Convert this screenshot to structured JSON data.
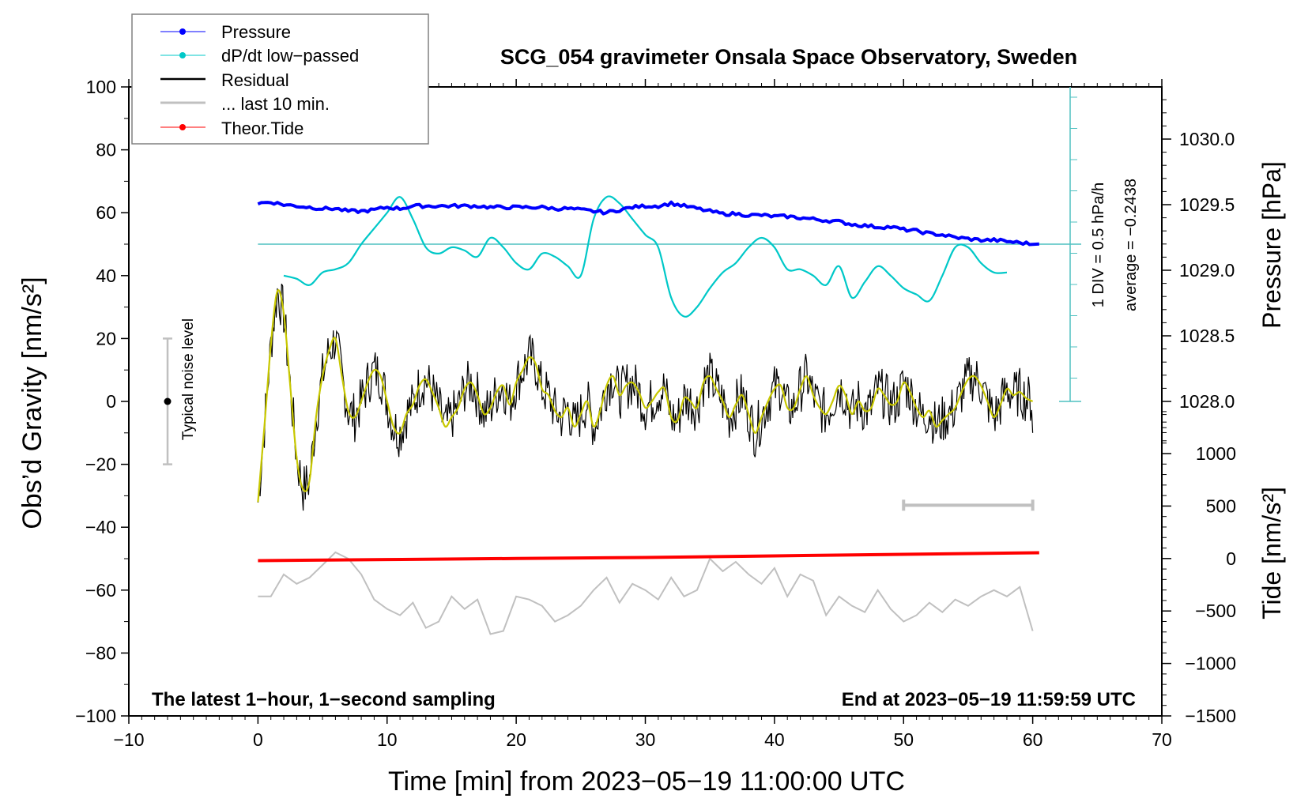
{
  "chart_data": {
    "type": "line",
    "title": "SCG_054 gravimeter Onsala Space Observatory, Sweden",
    "xlabel": "Time [min] from 2023−05−19 11:00:00 UTC",
    "ylabel_left": "Obs’d Gravity [nm/s²]",
    "ylabel_right_top": "Pressure [hPa]",
    "ylabel_right_bottom": "Tide [nm/s²]",
    "xlim": [
      -10,
      70
    ],
    "ylim": [
      -100,
      100
    ],
    "pressure_lim": [
      1027.5,
      1030.5
    ],
    "tide_lim": [
      -1500,
      1500
    ],
    "x_ticks": [
      "−10",
      "0",
      "10",
      "20",
      "30",
      "40",
      "50",
      "60",
      "70"
    ],
    "x_tick_values": [
      -10,
      0,
      10,
      20,
      30,
      40,
      50,
      60,
      70
    ],
    "y_ticks": [
      "100",
      "80",
      "60",
      "40",
      "20",
      "0",
      "−20",
      "−40",
      "−60",
      "−80",
      "−100"
    ],
    "y_tick_values": [
      100,
      80,
      60,
      40,
      20,
      0,
      -20,
      -40,
      -60,
      -80,
      -100
    ],
    "pressure_ticks": [
      "1030.0",
      "1029.5",
      "1029.0",
      "1028.5",
      "1028.0"
    ],
    "pressure_tick_values": [
      1030.0,
      1029.5,
      1029.0,
      1028.5,
      1028.0
    ],
    "tide_ticks": [
      "1000",
      "500",
      "0",
      "−500",
      "−1000",
      "−1500"
    ],
    "tide_tick_values": [
      1000,
      500,
      0,
      -500,
      -1000,
      -1500
    ],
    "legend": {
      "position": "top-left",
      "entries": [
        {
          "label": "Pressure",
          "color": "#0000ff",
          "marker": "dot"
        },
        {
          "label": "dP/dt low−passed",
          "color": "#00c8c8",
          "marker": "dot"
        },
        {
          "label": "Residual",
          "color": "#000000",
          "marker": "none"
        },
        {
          "label": "... last 10 min.",
          "color": "#c0c0c0",
          "marker": "none"
        },
        {
          "label": "Theor.Tide",
          "color": "#ff0000",
          "marker": "dot"
        }
      ]
    },
    "annotations": {
      "bottom_left": "The latest 1−hour, 1−second sampling",
      "bottom_right": "End at 2023−05−19 11:59:59 UTC",
      "dpdt_scale": "1 DIV = 0.5 hPa/h",
      "dpdt_average": "average = −0.2438",
      "noise_label": "Typical noise level",
      "noise_bar": {
        "x": -7,
        "center": 0,
        "low": -20,
        "high": 20
      },
      "ten_min_bar": {
        "y": -33,
        "x_start": 50,
        "x_end": 60
      }
    },
    "series": [
      {
        "name": "Pressure",
        "axis": "pressure",
        "color": "#0000ff",
        "x": [
          0,
          1,
          2,
          3,
          4,
          5,
          6,
          7,
          8,
          9,
          10,
          11,
          12,
          13,
          14,
          15,
          16,
          17,
          18,
          19,
          20,
          21,
          22,
          23,
          24,
          25,
          26,
          27,
          28,
          29,
          30,
          31,
          32,
          33,
          34,
          35,
          36,
          37,
          38,
          39,
          40,
          41,
          42,
          43,
          44,
          45,
          46,
          47,
          48,
          49,
          50,
          51,
          52,
          53,
          54,
          55,
          56,
          57,
          58,
          59,
          60
        ],
        "values": [
          1029.51,
          1029.52,
          1029.5,
          1029.49,
          1029.48,
          1029.47,
          1029.47,
          1029.45,
          1029.45,
          1029.46,
          1029.48,
          1029.47,
          1029.49,
          1029.49,
          1029.49,
          1029.49,
          1029.49,
          1029.49,
          1029.48,
          1029.48,
          1029.48,
          1029.48,
          1029.48,
          1029.47,
          1029.47,
          1029.46,
          1029.45,
          1029.44,
          1029.46,
          1029.48,
          1029.49,
          1029.49,
          1029.51,
          1029.49,
          1029.47,
          1029.45,
          1029.43,
          1029.43,
          1029.42,
          1029.42,
          1029.41,
          1029.41,
          1029.4,
          1029.39,
          1029.38,
          1029.37,
          1029.35,
          1029.34,
          1029.33,
          1029.33,
          1029.31,
          1029.3,
          1029.28,
          1029.27,
          1029.25,
          1029.24,
          1029.23,
          1029.23,
          1029.22,
          1029.21,
          1029.2
        ]
      },
      {
        "name": "dP/dt low-passed",
        "axis": "pressure_div",
        "color": "#00c8c8",
        "baseline": 50,
        "x": [
          2,
          3,
          4,
          5,
          6,
          7,
          8,
          9,
          10,
          11,
          12,
          13,
          14,
          15,
          16,
          17,
          18,
          19,
          20,
          21,
          22,
          23,
          24,
          25,
          26,
          27,
          28,
          29,
          30,
          31,
          32,
          33,
          34,
          35,
          36,
          37,
          38,
          39,
          40,
          41,
          42,
          43,
          44,
          45,
          46,
          47,
          48,
          49,
          50,
          51,
          52,
          53,
          54,
          55,
          56,
          57,
          58
        ],
        "values": [
          40,
          39,
          37,
          41,
          42,
          44,
          50,
          55,
          60,
          65,
          58,
          49,
          47,
          49,
          48,
          46,
          52,
          49,
          44,
          42,
          47,
          46,
          43,
          40,
          58,
          65,
          63,
          58,
          53,
          49,
          33,
          27,
          30,
          36,
          41,
          44,
          49,
          52,
          49,
          42,
          42,
          40,
          37,
          43,
          33,
          38,
          43,
          40,
          36,
          34,
          32,
          40,
          49,
          49,
          44,
          41,
          41
        ]
      },
      {
        "name": "Residual",
        "axis": "gravity",
        "color": "#000000",
        "smooth_color": "#c8c800",
        "x": [
          0,
          0.5,
          1,
          1.5,
          2,
          2.5,
          3,
          3.5,
          4,
          4.5,
          5,
          5.5,
          6,
          6.5,
          7,
          7.5,
          8,
          8.5,
          9,
          9.5,
          10,
          10.5,
          11,
          11.5,
          12,
          12.5,
          13,
          13.5,
          14,
          14.5,
          15,
          15.5,
          16,
          16.5,
          17,
          17.5,
          18,
          18.5,
          19,
          19.5,
          20,
          20.5,
          21,
          21.5,
          22,
          22.5,
          23,
          23.5,
          24,
          24.5,
          25,
          25.5,
          26,
          26.5,
          27,
          27.5,
          28,
          28.5,
          29,
          29.5,
          30,
          30.5,
          31,
          31.5,
          32,
          32.5,
          33,
          33.5,
          34,
          34.5,
          35,
          35.5,
          36,
          36.5,
          37,
          37.5,
          38,
          38.5,
          39,
          39.5,
          40,
          40.5,
          41,
          41.5,
          42,
          42.5,
          43,
          43.5,
          44,
          44.5,
          45,
          45.5,
          46,
          46.5,
          47,
          47.5,
          48,
          48.5,
          49,
          49.5,
          50,
          50.5,
          51,
          51.5,
          52,
          52.5,
          53,
          53.5,
          54,
          54.5,
          55,
          55.5,
          56,
          56.5,
          57,
          57.5,
          58,
          58.5,
          59,
          59.5,
          60
        ],
        "values": [
          -32,
          -8,
          18,
          35,
          28,
          5,
          -18,
          -28,
          -25,
          -5,
          8,
          16,
          20,
          8,
          -3,
          -5,
          0,
          6,
          10,
          8,
          0,
          -8,
          -10,
          -4,
          -1,
          5,
          7,
          3,
          -2,
          -8,
          -5,
          -2,
          4,
          6,
          2,
          -4,
          -2,
          3,
          5,
          -1,
          6,
          10,
          14,
          12,
          4,
          2,
          -3,
          -5,
          -2,
          -8,
          -4,
          0,
          -8,
          -3,
          5,
          8,
          2,
          5,
          6,
          3,
          -2,
          0,
          3,
          4,
          -5,
          -6,
          1,
          0,
          -2,
          6,
          8,
          4,
          0,
          -5,
          -1,
          2,
          -4,
          -10,
          -5,
          0,
          4,
          5,
          -2,
          -2,
          4,
          8,
          2,
          -2,
          -4,
          0,
          5,
          2,
          -4,
          0,
          -3,
          -2,
          4,
          2,
          -1,
          0,
          6,
          3,
          -2,
          -5,
          -3,
          -8,
          -6,
          -4,
          -2,
          3,
          7,
          8,
          5,
          0,
          -5,
          -1,
          4,
          2,
          3,
          1,
          0
        ]
      },
      {
        "name": "Theor.Tide",
        "axis": "tide",
        "color": "#ff0000",
        "x": [
          0,
          10,
          20,
          30,
          40,
          50,
          60
        ],
        "values": [
          -20,
          -10,
          0,
          10,
          25,
          40,
          55
        ]
      },
      {
        "name": "... last 10 min.",
        "axis": "gravity",
        "color": "#c0c0c0",
        "note": "last 10 minutes of residual, offset below and stretched across full width",
        "x": [
          0,
          1,
          2,
          3,
          4,
          5,
          6,
          7,
          8,
          9,
          10,
          11,
          12,
          13,
          14,
          15,
          16,
          17,
          18,
          19,
          20,
          21,
          22,
          23,
          24,
          25,
          26,
          27,
          28,
          29,
          30,
          31,
          32,
          33,
          34,
          35,
          36,
          37,
          38,
          39,
          40,
          41,
          42,
          43,
          44,
          45,
          46,
          47,
          48,
          49,
          50,
          51,
          52,
          53,
          54,
          55,
          56,
          57,
          58,
          59,
          60
        ],
        "values": [
          -62,
          -62,
          -55,
          -58,
          -56,
          -52,
          -48,
          -50,
          -55,
          -63,
          -66,
          -68,
          -64,
          -72,
          -70,
          -62,
          -66,
          -63,
          -74,
          -73,
          -62,
          -63,
          -65,
          -70,
          -68,
          -65,
          -60,
          -56,
          -64,
          -58,
          -60,
          -63,
          -56,
          -62,
          -60,
          -50,
          -54,
          -51,
          -55,
          -58,
          -53,
          -62,
          -55,
          -57,
          -68,
          -62,
          -65,
          -67,
          -60,
          -66,
          -70,
          -68,
          -64,
          -67,
          -63,
          -65,
          -62,
          -60,
          -62,
          -59,
          -73
        ]
      }
    ]
  }
}
